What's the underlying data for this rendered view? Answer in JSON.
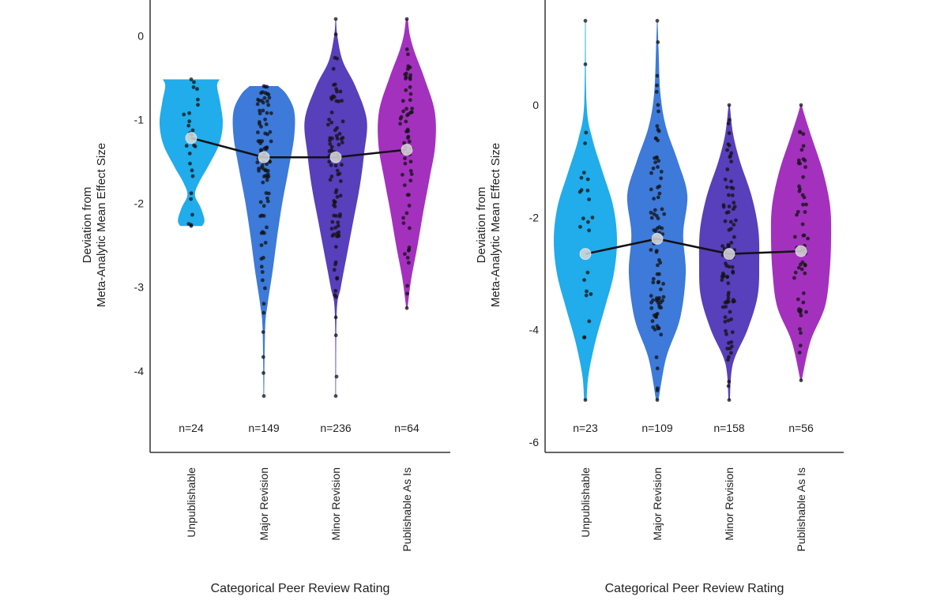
{
  "chart_data": [
    {
      "type": "violin",
      "ylabel_line1": "Deviation from",
      "ylabel_line2": "Meta-Analytic Mean Effect Size",
      "xlabel": "Categorical Peer Review Rating",
      "ylim": [
        -4.85,
        0.38
      ],
      "yticks": [
        0,
        -1,
        -2,
        -3,
        -4
      ],
      "grid": false,
      "categories": [
        "Unpublishable",
        "Major Revision",
        "Minor Revision",
        "Publishable As Is"
      ],
      "n_labels": [
        "n=24",
        "n=149",
        "n=236",
        "n=64"
      ],
      "colors": [
        "#0ea5e9",
        "#2d6fd6",
        "#4a2fb5",
        "#9b1fb8"
      ],
      "means": [
        -1.22,
        -1.45,
        -1.45,
        -1.36
      ],
      "ranges": [
        [
          -2.27,
          -0.52
        ],
        [
          -4.3,
          -0.6
        ],
        [
          -4.3,
          0.2
        ],
        [
          -3.25,
          0.2
        ]
      ],
      "violin_profiles": [
        [
          [
            -2.27,
            0.35
          ],
          [
            -2.2,
            0.42
          ],
          [
            -2.05,
            0.3
          ],
          [
            -1.9,
            0.12
          ],
          [
            -1.75,
            0.25
          ],
          [
            -1.55,
            0.55
          ],
          [
            -1.3,
            0.88
          ],
          [
            -1.05,
            1.0
          ],
          [
            -0.8,
            0.92
          ],
          [
            -0.6,
            0.82
          ],
          [
            -0.52,
            0.9
          ]
        ],
        [
          [
            -4.3,
            0.01
          ],
          [
            -3.5,
            0.04
          ],
          [
            -3.2,
            0.12
          ],
          [
            -2.8,
            0.28
          ],
          [
            -2.4,
            0.42
          ],
          [
            -2.0,
            0.58
          ],
          [
            -1.6,
            0.78
          ],
          [
            -1.2,
            0.96
          ],
          [
            -0.9,
            0.96
          ],
          [
            -0.7,
            0.72
          ],
          [
            -0.6,
            0.45
          ]
        ],
        [
          [
            -4.3,
            0.01
          ],
          [
            -3.3,
            0.03
          ],
          [
            -3.0,
            0.16
          ],
          [
            -2.6,
            0.36
          ],
          [
            -2.2,
            0.56
          ],
          [
            -1.8,
            0.76
          ],
          [
            -1.4,
            0.9
          ],
          [
            -1.0,
            0.98
          ],
          [
            -0.6,
            0.62
          ],
          [
            -0.3,
            0.22
          ],
          [
            0.0,
            0.05
          ],
          [
            0.2,
            0.01
          ]
        ],
        [
          [
            -3.25,
            0.02
          ],
          [
            -2.9,
            0.14
          ],
          [
            -2.5,
            0.34
          ],
          [
            -2.1,
            0.52
          ],
          [
            -1.7,
            0.72
          ],
          [
            -1.3,
            0.9
          ],
          [
            -0.9,
            0.88
          ],
          [
            -0.5,
            0.55
          ],
          [
            -0.2,
            0.25
          ],
          [
            0.0,
            0.1
          ],
          [
            0.2,
            0.03
          ]
        ]
      ]
    },
    {
      "type": "violin",
      "ylabel_line1": "Deviation from",
      "ylabel_line2": "Meta-Analytic Mean Effect Size",
      "xlabel": "Categorical Peer Review Rating",
      "ylim": [
        -6.0,
        1.8
      ],
      "yticks": [
        0,
        -2,
        -4,
        -6
      ],
      "grid": false,
      "categories": [
        "Unpublishable",
        "Major Revision",
        "Minor Revision",
        "Publishable As Is"
      ],
      "n_labels": [
        "n=23",
        "n=109",
        "n=158",
        "n=56"
      ],
      "colors": [
        "#0ea5e9",
        "#2d6fd6",
        "#4a2fb5",
        "#9b1fb8"
      ],
      "means": [
        -2.65,
        -2.38,
        -2.65,
        -2.6
      ],
      "ranges": [
        [
          -5.25,
          1.5
        ],
        [
          -5.25,
          1.5
        ],
        [
          -5.25,
          0.0
        ],
        [
          -4.9,
          0.0
        ]
      ],
      "violin_profiles": [
        [
          [
            -5.25,
            0.04
          ],
          [
            -4.8,
            0.1
          ],
          [
            -4.2,
            0.32
          ],
          [
            -3.6,
            0.62
          ],
          [
            -3.0,
            0.9
          ],
          [
            -2.4,
            1.0
          ],
          [
            -1.8,
            0.88
          ],
          [
            -1.2,
            0.55
          ],
          [
            -0.6,
            0.22
          ],
          [
            0.0,
            0.04
          ],
          [
            1.5,
            0.01
          ]
        ],
        [
          [
            -5.25,
            0.04
          ],
          [
            -4.5,
            0.28
          ],
          [
            -3.8,
            0.72
          ],
          [
            -3.0,
            0.9
          ],
          [
            -2.3,
            0.82
          ],
          [
            -1.6,
            0.95
          ],
          [
            -1.0,
            0.65
          ],
          [
            -0.4,
            0.28
          ],
          [
            0.2,
            0.1
          ],
          [
            1.0,
            0.04
          ],
          [
            1.5,
            0.01
          ]
        ],
        [
          [
            -5.25,
            0.02
          ],
          [
            -4.6,
            0.12
          ],
          [
            -4.0,
            0.58
          ],
          [
            -3.4,
            0.9
          ],
          [
            -2.8,
            0.95
          ],
          [
            -2.2,
            0.92
          ],
          [
            -1.6,
            0.7
          ],
          [
            -1.0,
            0.34
          ],
          [
            -0.5,
            0.12
          ],
          [
            0.0,
            0.02
          ]
        ],
        [
          [
            -4.9,
            0.02
          ],
          [
            -4.2,
            0.3
          ],
          [
            -3.6,
            0.75
          ],
          [
            -3.0,
            0.9
          ],
          [
            -2.4,
            0.95
          ],
          [
            -1.8,
            0.92
          ],
          [
            -1.2,
            0.7
          ],
          [
            -0.6,
            0.35
          ],
          [
            -0.2,
            0.12
          ],
          [
            0.0,
            0.02
          ]
        ]
      ]
    }
  ]
}
